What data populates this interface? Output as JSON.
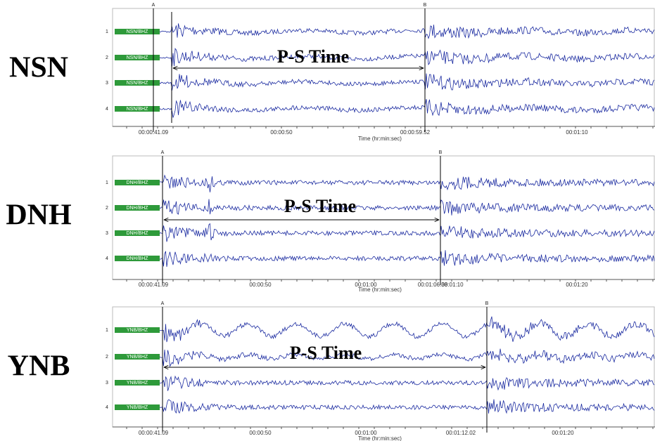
{
  "panels": [
    {
      "station": "NSN",
      "markers": [
        "A",
        "B"
      ],
      "ps_label": "P-S Time",
      "channel_numbers": [
        "1",
        "2",
        "3",
        "4"
      ],
      "channel_labels": [
        "NSN/BHZ",
        "NSN/BHZ",
        "NSN/BHZ",
        "NSN/BHZ"
      ],
      "time_ticks": [
        "00:00:41.09",
        "00:00:50",
        "00:00:59.52",
        "00:01:10"
      ],
      "axis_label": "Time (hr:min:sec)"
    },
    {
      "station": "DNH",
      "markers": [
        "A",
        "B"
      ],
      "ps_label": "P-S Time",
      "channel_numbers": [
        "1",
        "2",
        "3",
        "4"
      ],
      "channel_labels": [
        "DNH/BHZ",
        "DNH/BHZ",
        "DNH/BHZ",
        "DNH/BHZ"
      ],
      "time_ticks": [
        "00:00:41.09",
        "00:00:50",
        "00:01:00",
        "00:01:06.38",
        "00:01:10",
        "00:01:20"
      ],
      "axis_label": "Time (hr:min:sec)"
    },
    {
      "station": "YNB",
      "markers": [
        "A",
        "B"
      ],
      "ps_label": "P-S Time",
      "channel_numbers": [
        "1",
        "2",
        "3",
        "4"
      ],
      "channel_labels": [
        "YNB/BHZ",
        "YNB/BHZ",
        "YNB/BHZ",
        "YNB/BHZ"
      ],
      "time_ticks": [
        "00:00:41.09",
        "00:00:50",
        "00:01:00",
        "00:01:12.02",
        "00:01:20"
      ],
      "axis_label": "Time (hr:min:sec)"
    }
  ]
}
